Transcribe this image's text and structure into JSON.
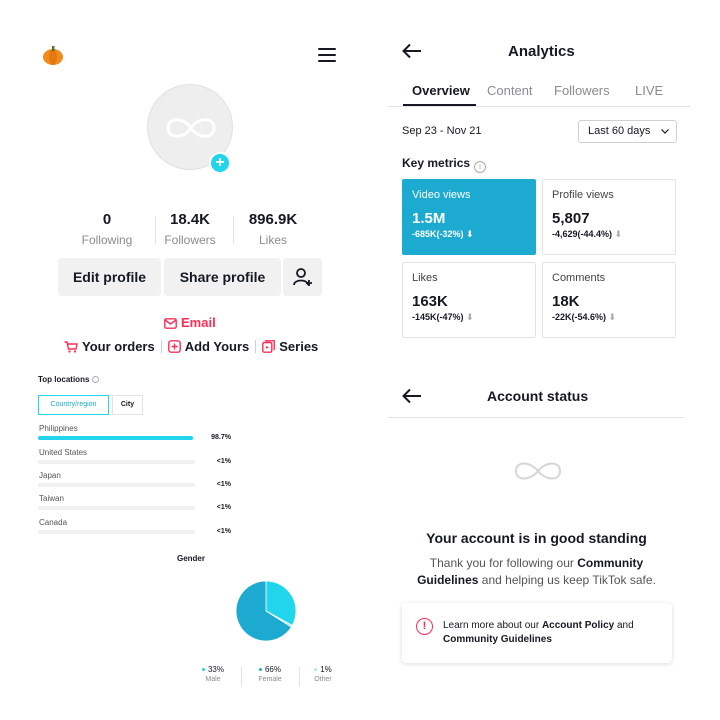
{
  "profile": {
    "stats": [
      {
        "value": "0",
        "label": "Following"
      },
      {
        "value": "18.4K",
        "label": "Followers"
      },
      {
        "value": "896.9K",
        "label": "Likes"
      }
    ],
    "edit_profile": "Edit profile",
    "share_profile": "Share profile",
    "email": "Email",
    "links": {
      "orders": "Your orders",
      "add_yours": "Add Yours",
      "series": "Series"
    },
    "accent": "#fe2c55",
    "brand_cyan": "#20d5ec"
  },
  "top_locations": {
    "title": "Top locations",
    "tabs": {
      "active": "Country/region",
      "inactive": "City"
    },
    "rows": [
      {
        "name": "Philippines",
        "pct_label": "98.7%",
        "fill": 0.987
      },
      {
        "name": "United States",
        "pct_label": "<1%",
        "fill": 0
      },
      {
        "name": "Japan",
        "pct_label": "<1%",
        "fill": 0
      },
      {
        "name": "Taiwan",
        "pct_label": "<1%",
        "fill": 0
      },
      {
        "name": "Canada",
        "pct_label": "<1%",
        "fill": 0
      }
    ]
  },
  "gender": {
    "title": "Gender",
    "items": [
      {
        "pct": "33%",
        "label": "Male",
        "color": "#20d5ec"
      },
      {
        "pct": "66%",
        "label": "Female",
        "color": "#1daad0"
      },
      {
        "pct": "1%",
        "label": "Other",
        "color": "#a9e9f3"
      }
    ]
  },
  "analytics": {
    "title": "Analytics",
    "tabs": [
      "Overview",
      "Content",
      "Followers",
      "LIVE"
    ],
    "active_tab": "Overview",
    "date_range": "Sep 23 - Nov 21",
    "period": "Last 60 days",
    "key_metrics_title": "Key metrics",
    "metrics": [
      {
        "label": "Video views",
        "value": "1.5M",
        "delta": "-685K(-32%)",
        "selected": true
      },
      {
        "label": "Profile views",
        "value": "5,807",
        "delta": "-4,629(-44.4%)",
        "selected": false
      },
      {
        "label": "Likes",
        "value": "163K",
        "delta": "-145K(-47%)",
        "selected": false
      },
      {
        "label": "Comments",
        "value": "18K",
        "delta": "-22K(-54.6%)",
        "selected": false
      }
    ],
    "arrow_down": "⬇"
  },
  "account_status": {
    "title": "Account status",
    "headline": "Your account is in good standing",
    "message_pre": "Thank you for following our ",
    "message_bold": "Community Guidelines",
    "message_post": " and helping us keep TikTok safe.",
    "notice_pre": "Learn more about our ",
    "notice_bold1": "Account Policy",
    "notice_mid": " and ",
    "notice_bold2": "Community Guidelines"
  }
}
